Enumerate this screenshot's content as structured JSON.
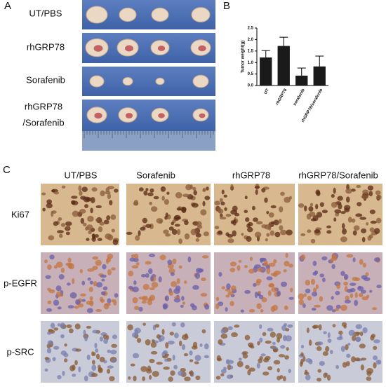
{
  "panel_a": {
    "label": "A",
    "rows": [
      [
        "UT/PBS"
      ],
      [
        "rhGRP78"
      ],
      [
        "Sorafenib"
      ],
      [
        "rhGRP78",
        "/Sorafenib"
      ]
    ]
  },
  "chart_data": {
    "type": "bar",
    "label": "B",
    "y_label": "Tumor weight(g)",
    "categories": [
      "UT",
      "rhGRP78",
      "sorafenib",
      "rhGRP78/sorafenib"
    ],
    "values": [
      1.22,
      1.72,
      0.43,
      0.83
    ],
    "errors": [
      0.3,
      0.38,
      0.33,
      0.45
    ],
    "color": "#1a1a1a",
    "ylim": [
      0,
      2.5
    ],
    "yticks": [
      {
        "value": 0,
        "label": "0.0"
      },
      0.5,
      {
        "value": 1,
        "label": "1.0"
      },
      1.5,
      {
        "value": 2,
        "label": "2.0"
      },
      2.5
    ]
  },
  "panel_c": {
    "label": "C",
    "columns": [
      "UT/PBS",
      "Sorafenib",
      "rhGRP78",
      "rhGRP78/Sorafenib"
    ],
    "rows": [
      "Ki67",
      "p-EGFR",
      "p-SRC"
    ]
  }
}
